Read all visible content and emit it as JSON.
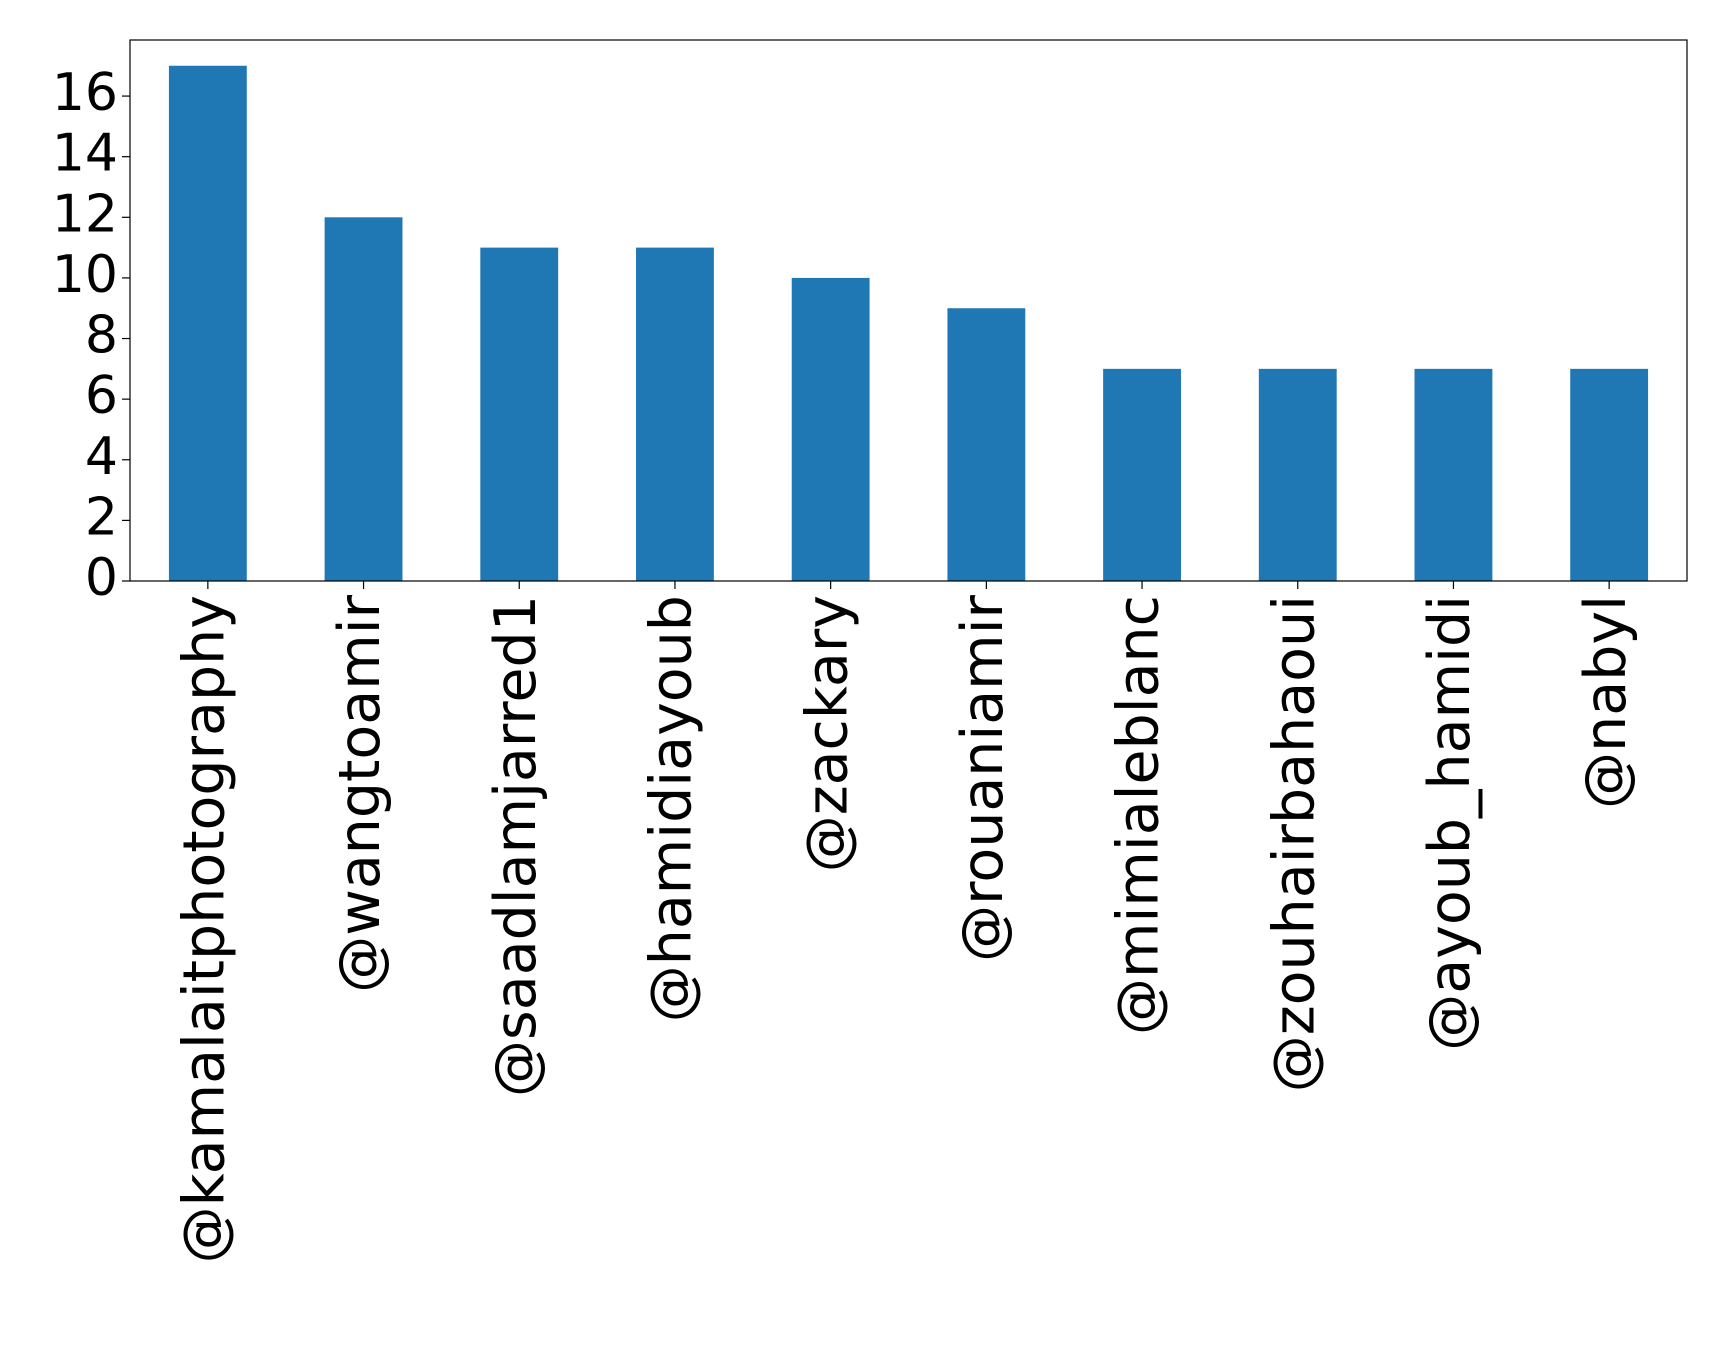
{
  "chart_data": {
    "type": "bar",
    "categories": [
      "@kamalaitphotography",
      "@wangtoamir",
      "@saadlamjarred1",
      "@hamidiayoub",
      "@zackary",
      "@rouaniamir",
      "@mimialeblanc",
      "@zouhairbahaoui",
      "@ayoub_hamidi",
      "@nabyl"
    ],
    "values": [
      17,
      12,
      11,
      11,
      10,
      9,
      7,
      7,
      7,
      7
    ],
    "color": "#1f77b4",
    "ylim": [
      0,
      17.85
    ],
    "yticks": [
      0,
      2,
      4,
      6,
      8,
      10,
      12,
      14,
      16
    ],
    "grid": false
  }
}
